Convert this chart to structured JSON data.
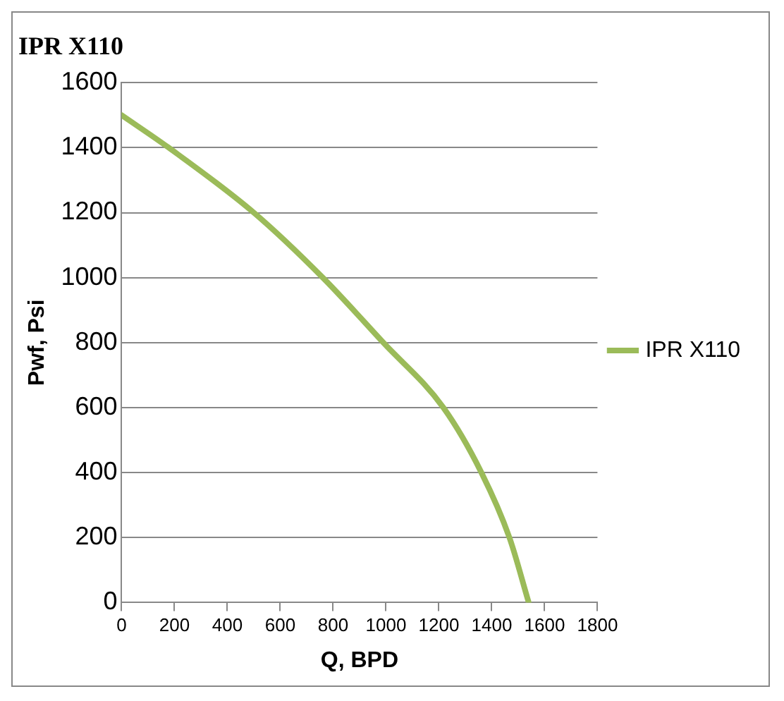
{
  "chart_data": {
    "type": "line",
    "title": "IPR X110",
    "xlabel": "Q, BPD",
    "ylabel": "Pwf, Psi",
    "x": [
      0,
      178,
      500,
      761,
      990,
      1217,
      1361,
      1467,
      1540
    ],
    "series": [
      {
        "name": "IPR X110",
        "color": "#9bbb59",
        "values": [
          1500,
          1400,
          1200,
          1000,
          800,
          600,
          400,
          200,
          0
        ]
      }
    ],
    "xlim": [
      0,
      1800
    ],
    "xticks": [
      0,
      200,
      400,
      600,
      800,
      1000,
      1200,
      1400,
      1600,
      1800
    ],
    "ylim": [
      0,
      1600
    ],
    "yticks": [
      0,
      200,
      400,
      600,
      800,
      1000,
      1200,
      1400,
      1600
    ],
    "grid": "y",
    "legend": "right",
    "marker": "none",
    "line_style": "solid"
  }
}
